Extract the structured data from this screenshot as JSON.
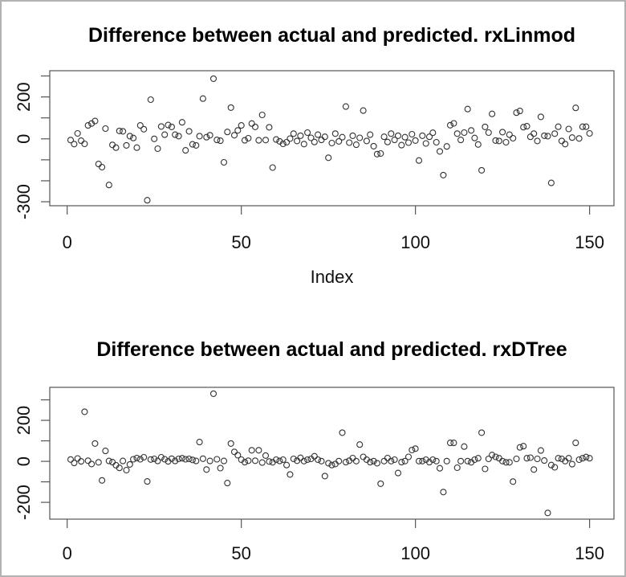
{
  "page": {
    "background": "#ffffff",
    "frame_color": "#b2b2b2",
    "axis_line_color": "#555555",
    "marker_color": "#333333",
    "text_color": "#111111"
  },
  "charts": [
    {
      "id": "rxlinmod",
      "title": "Difference between actual and predicted. rxLinmod",
      "xlabel": "Index",
      "ylabel": "",
      "chart_data": {
        "type": "scatter",
        "marker": "open-circle",
        "x_start": 1,
        "point_count": 150,
        "xlim": [
          -5,
          157
        ],
        "ylim": [
          -319,
          325
        ],
        "x_ticks": [
          0,
          50,
          100,
          150
        ],
        "y_ticks": [
          {
            "value": 300,
            "label": ""
          },
          {
            "value": 200,
            "label": "200"
          },
          {
            "value": 100,
            "label": ""
          },
          {
            "value": 0,
            "label": "0"
          },
          {
            "value": -100,
            "label": ""
          },
          {
            "value": -200,
            "label": ""
          },
          {
            "value": -300,
            "label": "-300"
          }
        ],
        "grid": false,
        "values": [
          -6,
          -25,
          26,
          -9,
          -24,
          64,
          73,
          85,
          -120,
          -135,
          49,
          -220,
          -29,
          -42,
          38,
          36,
          -31,
          13,
          4,
          -42,
          64,
          46,
          -293,
          187,
          0,
          -47,
          59,
          20,
          66,
          57,
          20,
          13,
          79,
          -55,
          36,
          -26,
          -31,
          13,
          192,
          8,
          17,
          287,
          -5,
          -9,
          -112,
          33,
          149,
          17,
          40,
          64,
          -7,
          3,
          73,
          57,
          -7,
          114,
          -6,
          55,
          -137,
          -3,
          -12,
          -24,
          -16,
          1,
          25,
          -10,
          15,
          -25,
          30,
          5,
          -15,
          20,
          -5,
          10,
          -90,
          -20,
          25,
          -12,
          8,
          154,
          -18,
          15,
          -28,
          5,
          135,
          -10,
          20,
          -35,
          -73,
          -70,
          10,
          -15,
          25,
          -5,
          15,
          -30,
          8,
          -18,
          22,
          -8,
          -103,
          15,
          -22,
          10,
          29,
          -16,
          -60,
          -173,
          -36,
          65,
          74,
          25,
          -5,
          30,
          142,
          40,
          4,
          -27,
          -150,
          57,
          30,
          119,
          -8,
          -10,
          32,
          -16,
          20,
          3,
          125,
          133,
          56,
          60,
          10,
          25,
          -10,
          105,
          15,
          13,
          -210,
          25,
          58,
          -10,
          -25,
          47,
          6,
          148,
          2,
          58,
          58,
          26
        ]
      }
    },
    {
      "id": "rxdtree",
      "title": "Difference between actual and predicted. rxDTree",
      "xlabel": "",
      "ylabel": "",
      "chart_data": {
        "type": "scatter",
        "marker": "open-circle",
        "x_start": 1,
        "point_count": 150,
        "xlim": [
          -5,
          157
        ],
        "ylim": [
          -282,
          361
        ],
        "x_ticks": [
          0,
          50,
          100,
          150
        ],
        "y_ticks": [
          {
            "value": 300,
            "label": ""
          },
          {
            "value": 200,
            "label": "200"
          },
          {
            "value": 100,
            "label": ""
          },
          {
            "value": 0,
            "label": "0"
          },
          {
            "value": -100,
            "label": ""
          },
          {
            "value": -200,
            "label": "-200"
          }
        ],
        "grid": false,
        "values": [
          9,
          -8,
          14,
          0,
          242,
          3,
          -13,
          87,
          -5,
          -93,
          51,
          2,
          -4,
          -19,
          -32,
          2,
          -43,
          -15,
          10,
          16,
          10,
          20,
          -98,
          9,
          12,
          2,
          20,
          10,
          0,
          13,
          2,
          12,
          15,
          10,
          12,
          7,
          2,
          94,
          13,
          -40,
          2,
          330,
          10,
          -33,
          2,
          -106,
          87,
          46,
          30,
          8,
          -4,
          3,
          54,
          3,
          54,
          -6,
          28,
          -1,
          -5,
          8,
          2,
          8,
          -18,
          -64,
          12,
          3,
          17,
          1,
          8,
          12,
          25,
          8,
          1,
          -72,
          -9,
          -18,
          -13,
          1,
          140,
          -4,
          3,
          16,
          1,
          82,
          22,
          8,
          -4,
          1,
          -9,
          -109,
          1,
          16,
          1,
          8,
          -57,
          -4,
          1,
          22,
          55,
          62,
          1,
          1,
          8,
          -4,
          8,
          1,
          -34,
          -150,
          1,
          90,
          90,
          -31,
          1,
          72,
          1,
          -5,
          8,
          15,
          140,
          -37,
          12,
          31,
          22,
          15,
          1,
          -5,
          -5,
          -99,
          12,
          68,
          74,
          15,
          18,
          -40,
          12,
          53,
          4,
          -252,
          -18,
          -29,
          15,
          12,
          1,
          15,
          -14,
          90,
          8,
          15,
          21,
          15
        ]
      }
    }
  ]
}
